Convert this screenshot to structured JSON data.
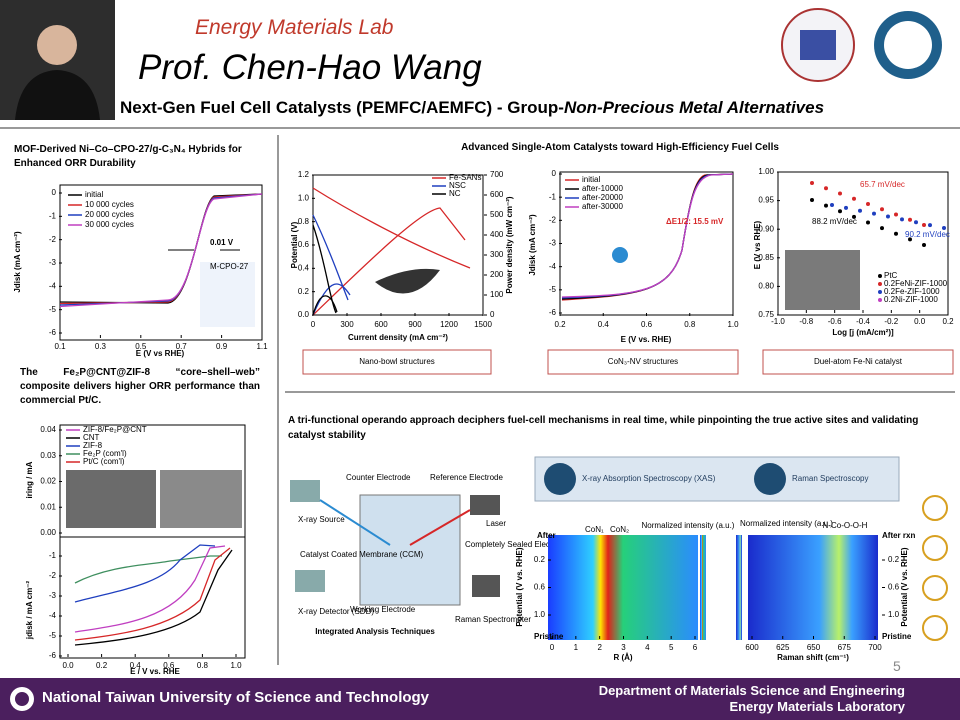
{
  "header": {
    "lab": "Energy Materials Lab",
    "name": "Prof. Chen-Hao Wang",
    "subtitle": "Next-Gen Fuel Cell Catalysts (PEMFC/AEMFC)",
    "subtitle_tail": " - Group-",
    "subtitle_italic": "Non-Precious Metal Alternatives"
  },
  "left": {
    "caption1": "MOF-Derived Ni–Co–CPO-27/g-C₃N₄ Hybrids for Enhanced ORR Durability",
    "fig1": {
      "legend": [
        "initial",
        "10 000 cycles",
        "20 000 cycles",
        "30 000 cycles"
      ],
      "annotation": "0.01 V",
      "inset": "M-CPO-27",
      "xlabel": "E (V vs RHE)",
      "ylabel": "Jdisk (mA cm⁻²)",
      "xticks": [
        0.1,
        0.3,
        0.5,
        0.7,
        0.9,
        1.1
      ],
      "yticks": [
        0,
        -1,
        -2,
        -3,
        -4,
        -5,
        -6
      ]
    },
    "caption2": "The Fe₂P@CNT@ZIF-8 “core–shell–web” composite delivers higher ORR performance than commercial Pt/C.",
    "fig2": {
      "legend": [
        "ZIF-8/Fe₂P@CNT",
        "CNT",
        "ZIF-8",
        "Fe₂P (com'l)",
        "Pt/C (com'l)"
      ],
      "ylabel_top": "iring / mA",
      "yticks_top": [
        0.04,
        0.03,
        0.02,
        0.01,
        {
          "value": 0,
          "label": "0.00"
        }
      ],
      "ylabel_bottom": "jdisk / mA cm⁻²",
      "yticks_bottom": [
        -1,
        -2,
        -3,
        -4,
        -5,
        -6
      ],
      "xticks": [
        {
          "value": 0,
          "label": "0.0"
        },
        0.2,
        0.4,
        0.6,
        0.8,
        {
          "value": 1,
          "label": "1.0"
        }
      ],
      "xlabel": "E / V vs. RHE"
    }
  },
  "right": {
    "title": "Advanced Single-Atom Catalysts toward High-Efficiency Fuel Cells",
    "figA": {
      "legend": [
        "Fe-SANs",
        "NSC",
        "NC"
      ],
      "xlabel": "Current density (mA cm⁻²)",
      "ylabel": "Potential (V)",
      "y2label": "Power density (mW cm⁻²)",
      "xticks": [
        0,
        300,
        600,
        900,
        1200,
        1500
      ],
      "yticks": [
        {
          "value": 0,
          "label": "0.0"
        },
        0.2,
        0.4,
        0.6,
        0.8,
        {
          "value": 1,
          "label": "1.0"
        },
        1.2
      ],
      "y2ticks": [
        0,
        100,
        200,
        300,
        400,
        500,
        600,
        700
      ],
      "button": "Nano-bowl structures"
    },
    "figB": {
      "legend": [
        "initial",
        "after-10000",
        "after-20000",
        "after-30000"
      ],
      "annotation": "ΔE1/2: 15.5 mV",
      "xlabel": "E (V vs. RHE)",
      "ylabel": "Jdisk (mA cm⁻²)",
      "xticks": [
        0.2,
        0.4,
        0.6,
        0.8,
        {
          "value": 1,
          "label": "1.0"
        }
      ],
      "yticks": [
        0,
        -1,
        -2,
        -3,
        -4,
        -5,
        -6
      ],
      "button": "CoN₃-NV structures"
    },
    "figC": {
      "annotations": [
        "65.7 mV/dec",
        "88.2 mV/dec",
        "90.2 mV/dec"
      ],
      "legend": [
        "PtC",
        "0.2FeNi-ZIF-1000",
        "0.2Fe-ZIF-1000",
        "0.2Ni-ZIF-1000"
      ],
      "xlabel": "Log [j (mA/cm²)]",
      "ylabel": "E (V vs RHE)",
      "xticks": [
        {
          "value": -1,
          "label": "-1.0"
        },
        -0.8,
        -0.6,
        -0.4,
        -0.2,
        {
          "value": 0,
          "label": "0.0"
        },
        0.2
      ],
      "yticks": [
        {
          "value": 1,
          "label": "1.00"
        },
        0.95,
        {
          "value": 0.9,
          "label": "0.90"
        },
        0.85,
        {
          "value": 0.8,
          "label": "0.80"
        },
        0.75
      ],
      "button": "Duel-atom Fe-Ni catalyst"
    },
    "description": "A tri-functional operando approach deciphers fuel-cell mechanisms in real time, while pinpointing the true active sites and validating catalyst stability",
    "diagram": {
      "title": "Integrated Analysis Techniques",
      "labels": [
        "Counter Electrode",
        "Reference Electrode",
        "X-ray Source",
        "Laser",
        "Catalyst Coated Membrane (CCM)",
        "Completely Sealed Electrochemical Cell",
        "Working Electrode",
        "X-ray Detector (SDD)",
        "Raman Spectrometer"
      ]
    },
    "xas": "X-ray Absorption Spectroscopy (XAS)",
    "raman": "Raman Spectroscopy",
    "heatmaps": {
      "peaks": [
        "CoN₁",
        "CoN₂"
      ],
      "intensity": "Normalized intensity (a.u.)",
      "species": "N-Co-O-O-H",
      "after": "After",
      "after_rxn": "After rxn",
      "pristine": "Pristine",
      "potential": "Potential (V vs. RHE)",
      "r_label": "R (Å)",
      "raman_label": "Raman shift (cm⁻¹)",
      "r_ticks": [
        0,
        1,
        2,
        3,
        4,
        5,
        6
      ],
      "raman_ticks": [
        600,
        625,
        650,
        675,
        700
      ],
      "pot_ticks": [
        0.2,
        0.6,
        {
          "value": 1,
          "label": "1.0"
        }
      ]
    }
  },
  "page": "5",
  "footer": {
    "university": "National Taiwan University of Science and Technology",
    "department": "Department of Materials Science and Engineering",
    "lab": "Energy Materials Laboratory"
  }
}
